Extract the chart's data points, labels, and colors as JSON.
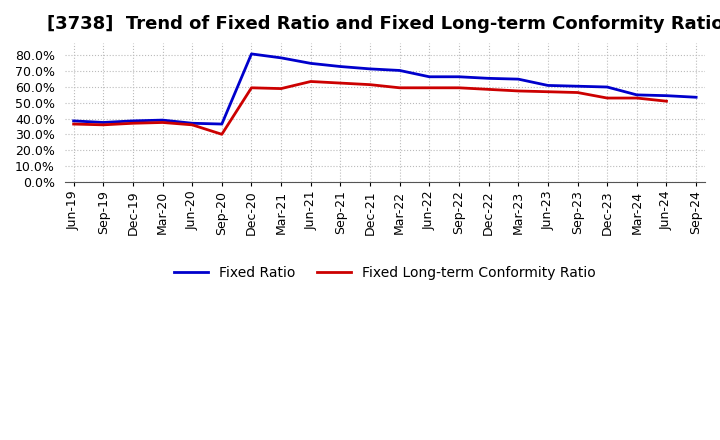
{
  "title": "[3738]  Trend of Fixed Ratio and Fixed Long-term Conformity Ratio",
  "x_labels": [
    "Jun-19",
    "Sep-19",
    "Dec-19",
    "Mar-20",
    "Jun-20",
    "Sep-20",
    "Dec-20",
    "Mar-21",
    "Jun-21",
    "Sep-21",
    "Dec-21",
    "Mar-22",
    "Jun-22",
    "Sep-22",
    "Dec-22",
    "Mar-23",
    "Jun-23",
    "Sep-23",
    "Dec-23",
    "Mar-24",
    "Jun-24",
    "Sep-24"
  ],
  "fixed_ratio": [
    38.5,
    37.5,
    38.5,
    39.0,
    37.0,
    36.5,
    81.0,
    78.5,
    75.0,
    73.0,
    71.5,
    70.5,
    66.5,
    66.5,
    65.5,
    65.0,
    61.0,
    60.5,
    60.0,
    55.0,
    54.5,
    53.5
  ],
  "fixed_lt_ratio": [
    36.5,
    36.0,
    37.0,
    37.5,
    36.0,
    30.0,
    59.5,
    59.0,
    63.5,
    62.5,
    61.5,
    59.5,
    59.5,
    59.5,
    58.5,
    57.5,
    57.0,
    56.5,
    53.0,
    53.0,
    51.0,
    null
  ],
  "ylim": [
    0,
    88
  ],
  "yticks": [
    0,
    10,
    20,
    30,
    40,
    50,
    60,
    70,
    80
  ],
  "fixed_ratio_color": "#0000CC",
  "fixed_lt_ratio_color": "#CC0000",
  "grid_color": "#BBBBBB",
  "background_color": "#FFFFFF",
  "legend_fixed_ratio": "Fixed Ratio",
  "legend_fixed_lt_ratio": "Fixed Long-term Conformity Ratio",
  "title_fontsize": 13,
  "tick_fontsize": 9,
  "legend_fontsize": 10
}
